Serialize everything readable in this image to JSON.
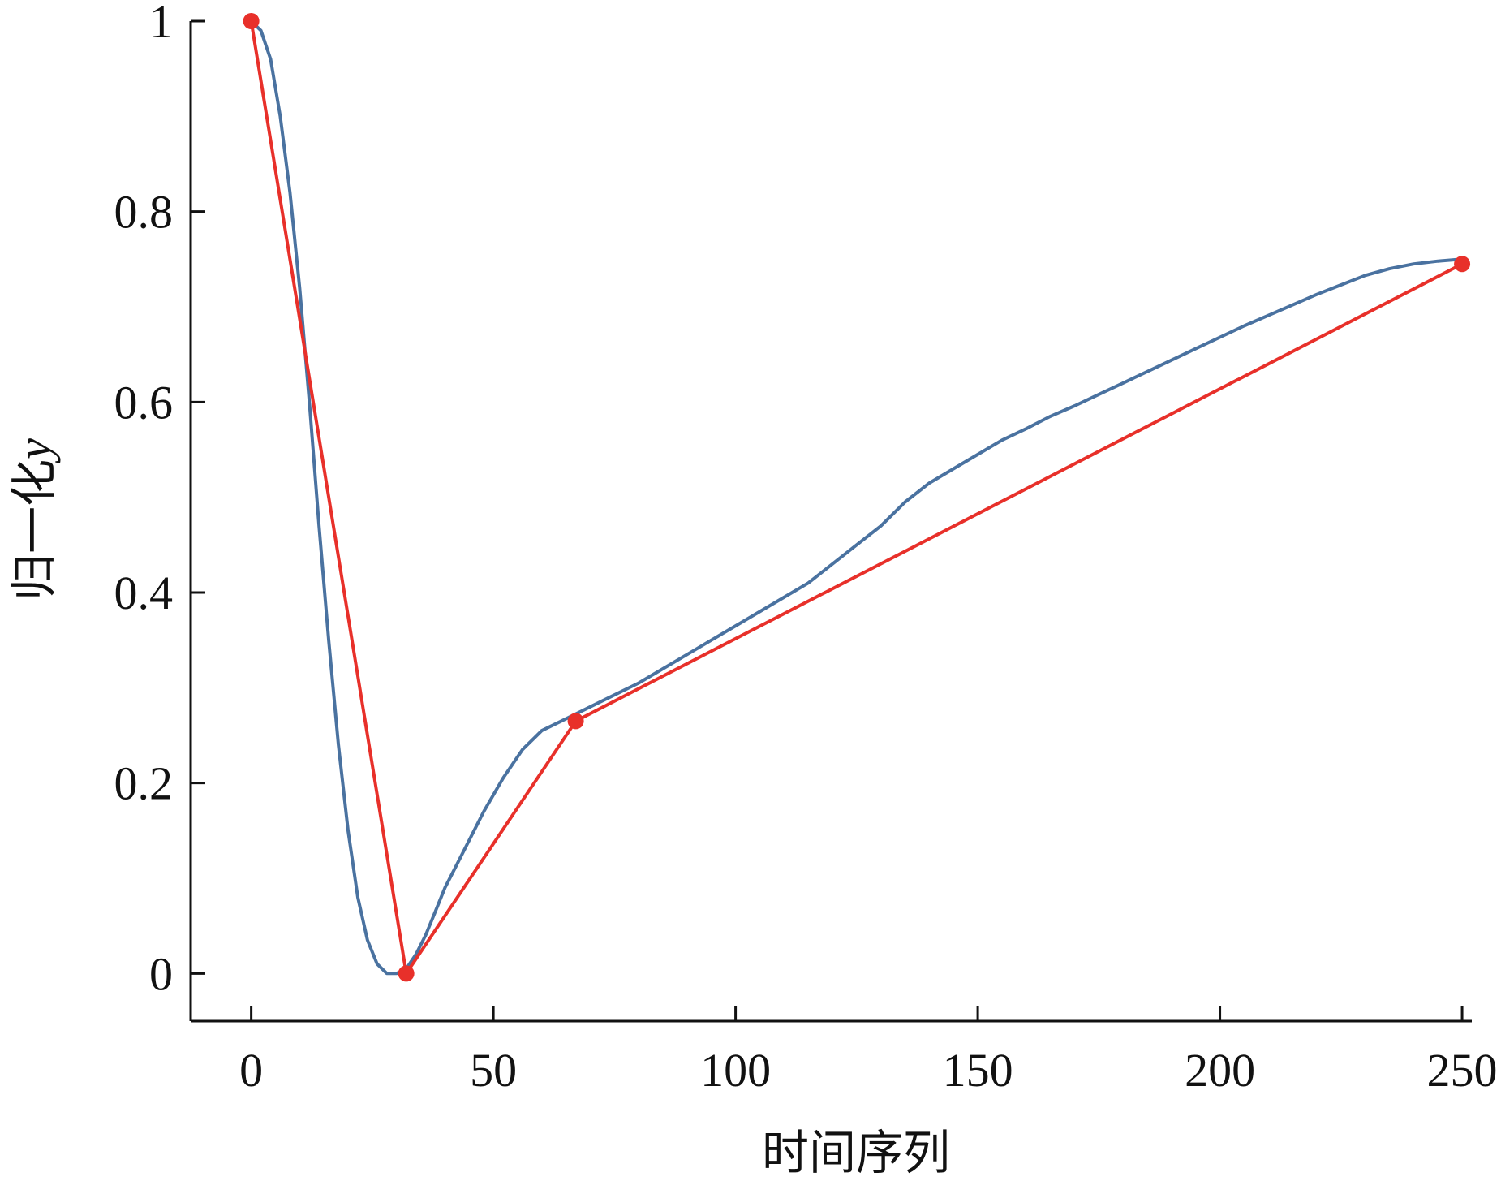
{
  "chart_data": {
    "type": "line",
    "xlabel": "时间序列",
    "ylabel": {
      "prefix": "归一化",
      "var": "y"
    },
    "xlim": [
      -12.5,
      252
    ],
    "ylim": [
      -0.05,
      1.0
    ],
    "x_ticks": [
      0,
      50,
      100,
      150,
      200,
      250
    ],
    "x_tick_labels": [
      "0",
      "50",
      "100",
      "150",
      "200",
      "250"
    ],
    "y_ticks": [
      0,
      0.2,
      0.4,
      0.6,
      0.8,
      1
    ],
    "y_tick_labels": [
      "0",
      "0.2",
      "0.4",
      "0.6",
      "0.8",
      "1"
    ],
    "grid": false,
    "colors": {
      "smooth": "#4a72a0",
      "segment": "#e8302a",
      "axis": "#111111"
    },
    "series": [
      {
        "style": "smooth",
        "x": [
          0,
          2,
          4,
          6,
          8,
          10,
          12,
          14,
          16,
          18,
          20,
          22,
          24,
          26,
          28,
          30,
          32,
          34,
          36,
          38,
          40,
          42,
          45,
          48,
          52,
          56,
          60,
          64,
          68,
          72,
          76,
          80,
          85,
          90,
          95,
          100,
          105,
          110,
          115,
          120,
          125,
          130,
          135,
          140,
          145,
          150,
          155,
          160,
          165,
          170,
          175,
          180,
          185,
          190,
          195,
          200,
          205,
          210,
          215,
          220,
          225,
          230,
          235,
          240,
          245,
          250
        ],
        "y": [
          1.0,
          0.99,
          0.96,
          0.9,
          0.82,
          0.72,
          0.6,
          0.47,
          0.35,
          0.24,
          0.15,
          0.08,
          0.035,
          0.01,
          0.0,
          0.0,
          0.005,
          0.02,
          0.04,
          0.065,
          0.09,
          0.11,
          0.14,
          0.17,
          0.205,
          0.235,
          0.255,
          0.265,
          0.275,
          0.285,
          0.295,
          0.305,
          0.32,
          0.335,
          0.35,
          0.365,
          0.38,
          0.395,
          0.41,
          0.43,
          0.45,
          0.47,
          0.495,
          0.515,
          0.53,
          0.545,
          0.56,
          0.572,
          0.585,
          0.596,
          0.608,
          0.62,
          0.632,
          0.644,
          0.656,
          0.668,
          0.68,
          0.691,
          0.702,
          0.713,
          0.723,
          0.733,
          0.74,
          0.745,
          0.748,
          0.75
        ]
      },
      {
        "style": "segments",
        "x": [
          0,
          32,
          67,
          250
        ],
        "y": [
          1.0,
          0.0,
          0.265,
          0.745
        ]
      }
    ]
  }
}
